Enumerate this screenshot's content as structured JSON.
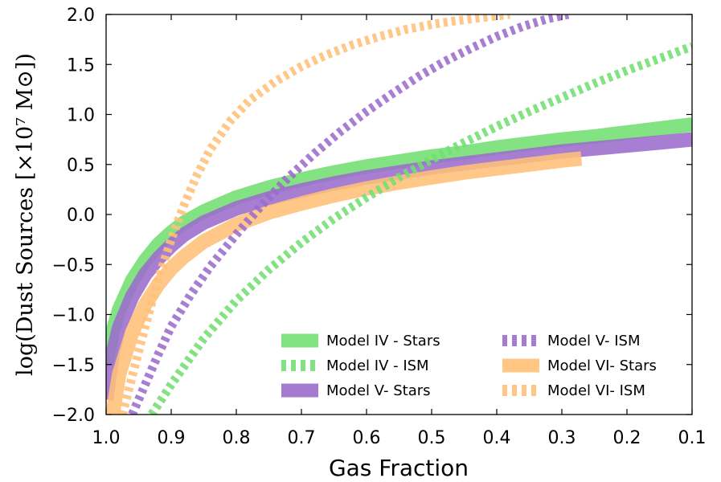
{
  "chart_data": {
    "type": "line",
    "xlabel": "Gas Fraction",
    "ylabel": "log(Dust Sources [×10⁷ M⊙])",
    "xlim": [
      1.0,
      0.1
    ],
    "ylim": [
      -2.0,
      2.0
    ],
    "x_reversed": true,
    "grid": false,
    "legend_position": "lower-right",
    "x_ticks": [
      "1.0",
      "0.9",
      "0.8",
      "0.7",
      "0.6",
      "0.5",
      "0.4",
      "0.3",
      "0.2",
      "0.1"
    ],
    "x_tick_values": [
      1.0,
      0.9,
      0.8,
      0.7,
      0.6,
      0.5,
      0.4,
      0.3,
      0.2,
      0.1
    ],
    "y_ticks": [
      "2.0",
      "1.5",
      "1.0",
      "0.5",
      "0.0",
      "−0.5",
      "−1.0",
      "−1.5",
      "−2.0"
    ],
    "y_tick_values": [
      2.0,
      1.5,
      1.0,
      0.5,
      0.0,
      -0.5,
      -1.0,
      -1.5,
      -2.0
    ],
    "series": [
      {
        "name": "Model IV - Stars",
        "color": "#72df72",
        "style": "solid",
        "points": [
          [
            1.0,
            -1.5
          ],
          [
            0.99,
            -1.17
          ],
          [
            0.98,
            -0.95
          ],
          [
            0.96,
            -0.66
          ],
          [
            0.94,
            -0.46
          ],
          [
            0.92,
            -0.3
          ],
          [
            0.9,
            -0.18
          ],
          [
            0.88,
            -0.08
          ],
          [
            0.85,
            0.03
          ],
          [
            0.8,
            0.17
          ],
          [
            0.75,
            0.27
          ],
          [
            0.7,
            0.35
          ],
          [
            0.65,
            0.42
          ],
          [
            0.6,
            0.48
          ],
          [
            0.55,
            0.53
          ],
          [
            0.5,
            0.58
          ],
          [
            0.45,
            0.62
          ],
          [
            0.4,
            0.67
          ],
          [
            0.35,
            0.71
          ],
          [
            0.3,
            0.75
          ],
          [
            0.25,
            0.78
          ],
          [
            0.2,
            0.82
          ],
          [
            0.15,
            0.86
          ],
          [
            0.1,
            0.9
          ]
        ]
      },
      {
        "name": "Model IV - ISM",
        "color": "#72df72",
        "style": "dashed",
        "points": [
          [
            0.93,
            -2.0
          ],
          [
            0.9,
            -1.7
          ],
          [
            0.85,
            -1.24
          ],
          [
            0.8,
            -0.86
          ],
          [
            0.75,
            -0.55
          ],
          [
            0.7,
            -0.28
          ],
          [
            0.65,
            -0.04
          ],
          [
            0.6,
            0.17
          ],
          [
            0.55,
            0.37
          ],
          [
            0.5,
            0.55
          ],
          [
            0.45,
            0.72
          ],
          [
            0.4,
            0.88
          ],
          [
            0.35,
            1.03
          ],
          [
            0.3,
            1.17
          ],
          [
            0.25,
            1.31
          ],
          [
            0.2,
            1.44
          ],
          [
            0.15,
            1.56
          ],
          [
            0.1,
            1.68
          ]
        ]
      },
      {
        "name": "Model V- Stars",
        "color": "#9b6ccc",
        "style": "solid",
        "points": [
          [
            1.0,
            -1.85
          ],
          [
            0.99,
            -1.4
          ],
          [
            0.98,
            -1.13
          ],
          [
            0.96,
            -0.82
          ],
          [
            0.94,
            -0.6
          ],
          [
            0.92,
            -0.44
          ],
          [
            0.9,
            -0.31
          ],
          [
            0.88,
            -0.2
          ],
          [
            0.85,
            -0.08
          ],
          [
            0.8,
            0.06
          ],
          [
            0.75,
            0.16
          ],
          [
            0.7,
            0.24
          ],
          [
            0.65,
            0.31
          ],
          [
            0.6,
            0.37
          ],
          [
            0.55,
            0.42
          ],
          [
            0.5,
            0.47
          ],
          [
            0.45,
            0.51
          ],
          [
            0.4,
            0.55
          ],
          [
            0.35,
            0.59
          ],
          [
            0.3,
            0.63
          ],
          [
            0.25,
            0.66
          ],
          [
            0.2,
            0.69
          ],
          [
            0.15,
            0.72
          ],
          [
            0.1,
            0.75
          ]
        ]
      },
      {
        "name": "Model V- ISM",
        "color": "#9b6ccc",
        "style": "dashed",
        "points": [
          [
            0.96,
            -2.0
          ],
          [
            0.94,
            -1.7
          ],
          [
            0.92,
            -1.4
          ],
          [
            0.9,
            -1.12
          ],
          [
            0.87,
            -0.8
          ],
          [
            0.84,
            -0.52
          ],
          [
            0.8,
            -0.2
          ],
          [
            0.76,
            0.1
          ],
          [
            0.72,
            0.37
          ],
          [
            0.68,
            0.61
          ],
          [
            0.64,
            0.83
          ],
          [
            0.6,
            1.03
          ],
          [
            0.56,
            1.21
          ],
          [
            0.52,
            1.38
          ],
          [
            0.48,
            1.53
          ],
          [
            0.44,
            1.66
          ],
          [
            0.4,
            1.78
          ],
          [
            0.36,
            1.88
          ],
          [
            0.32,
            1.96
          ],
          [
            0.29,
            2.0
          ]
        ]
      },
      {
        "name": "Model VI- Stars",
        "color": "#ffc077",
        "style": "solid",
        "points": [
          [
            0.99,
            -2.0
          ],
          [
            0.98,
            -1.6
          ],
          [
            0.96,
            -1.18
          ],
          [
            0.94,
            -0.9
          ],
          [
            0.92,
            -0.7
          ],
          [
            0.9,
            -0.54
          ],
          [
            0.88,
            -0.42
          ],
          [
            0.85,
            -0.27
          ],
          [
            0.8,
            -0.1
          ],
          [
            0.75,
            0.02
          ],
          [
            0.7,
            0.11
          ],
          [
            0.65,
            0.19
          ],
          [
            0.6,
            0.26
          ],
          [
            0.55,
            0.32
          ],
          [
            0.5,
            0.37
          ],
          [
            0.45,
            0.42
          ],
          [
            0.4,
            0.46
          ],
          [
            0.35,
            0.5
          ],
          [
            0.3,
            0.54
          ],
          [
            0.27,
            0.56
          ]
        ]
      },
      {
        "name": "Model VI- ISM",
        "color": "#ffc077",
        "style": "dashed",
        "points": [
          [
            0.975,
            -2.0
          ],
          [
            0.96,
            -1.62
          ],
          [
            0.94,
            -1.12
          ],
          [
            0.92,
            -0.65
          ],
          [
            0.9,
            -0.25
          ],
          [
            0.88,
            0.1
          ],
          [
            0.86,
            0.4
          ],
          [
            0.84,
            0.65
          ],
          [
            0.81,
            0.93
          ],
          [
            0.78,
            1.14
          ],
          [
            0.74,
            1.33
          ],
          [
            0.7,
            1.48
          ],
          [
            0.66,
            1.6
          ],
          [
            0.62,
            1.7
          ],
          [
            0.58,
            1.78
          ],
          [
            0.54,
            1.85
          ],
          [
            0.5,
            1.9
          ],
          [
            0.46,
            1.94
          ],
          [
            0.42,
            1.97
          ],
          [
            0.38,
            2.0
          ]
        ]
      }
    ]
  },
  "legend": {
    "items": [
      {
        "label": "Model IV - Stars",
        "color": "#72df72",
        "style": "solid"
      },
      {
        "label": "Model IV - ISM",
        "color": "#72df72",
        "style": "dashed"
      },
      {
        "label": "Model V- Stars",
        "color": "#9b6ccc",
        "style": "solid"
      },
      {
        "label": "Model V- ISM",
        "color": "#9b6ccc",
        "style": "dashed"
      },
      {
        "label": "Model VI- Stars",
        "color": "#ffc077",
        "style": "solid"
      },
      {
        "label": "Model VI- ISM",
        "color": "#ffc077",
        "style": "dashed"
      }
    ]
  }
}
